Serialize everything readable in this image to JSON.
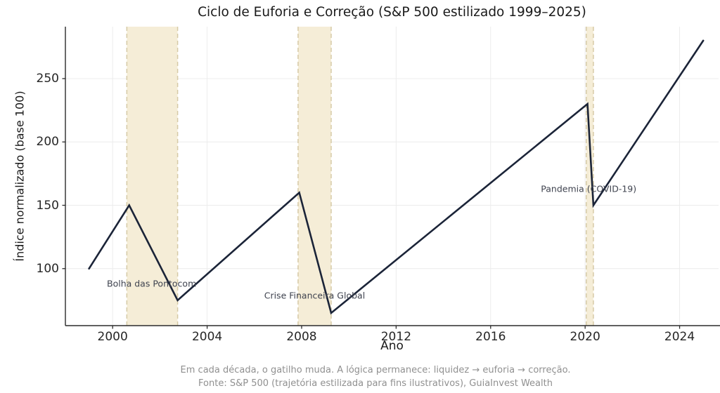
{
  "chart_data": {
    "type": "line",
    "title": "Ciclo de Euforia e Correção (S&P 500 estilizado 1999–2025)",
    "xlabel": "Ano",
    "ylabel": "Índice normalizado (base 100)",
    "xlim": [
      1998.0,
      2025.65
    ],
    "ylim": [
      55,
      291
    ],
    "xticks": [
      2000,
      2004,
      2008,
      2012,
      2016,
      2020,
      2024
    ],
    "yticks": [
      100,
      150,
      200,
      250
    ],
    "grid": true,
    "legend": "none",
    "series": [
      {
        "name": "S&P 500 estilizado",
        "color": "#1b2438",
        "points": [
          [
            1999,
            100
          ],
          [
            2000.7,
            150
          ],
          [
            2002.75,
            75
          ],
          [
            2007.9,
            160
          ],
          [
            2009.25,
            65
          ],
          [
            2020.1,
            230
          ],
          [
            2020.35,
            150
          ],
          [
            2025,
            280
          ]
        ]
      }
    ],
    "bands": [
      {
        "name": "dotcom-bubble-band",
        "x0": 2000.6,
        "x1": 2002.75
      },
      {
        "name": "financial-crisis-band",
        "x0": 2007.85,
        "x1": 2009.25
      },
      {
        "name": "covid-band",
        "x0": 2020.05,
        "x1": 2020.35
      }
    ],
    "annotations": [
      {
        "name": "annotation-dotcom",
        "text": "Bolha das Pontocom",
        "x": 2001.65,
        "y": 88
      },
      {
        "name": "annotation-gfc",
        "text": "Crise Financeira Global",
        "x": 2008.55,
        "y": 79
      },
      {
        "name": "annotation-covid",
        "text": "Pandemia (COVID-19)",
        "x": 2020.15,
        "y": 163
      }
    ],
    "footer": [
      "Em cada década, o gatilho muda. A lógica permanece: liquidez → euforia → correção.",
      "Fonte: S&P 500 (trajetória estilizada para fins ilustrativos), GuiaInvest Wealth"
    ],
    "colors": {
      "line": "#1b2438",
      "band_fill": "#f5edd7",
      "band_edge": "#d6caa6",
      "grid": "#ececec",
      "spine": "#2b2b2b",
      "tick_label": "#262626",
      "annotation_text": "#3f434f",
      "footer_text": "#909090"
    }
  }
}
